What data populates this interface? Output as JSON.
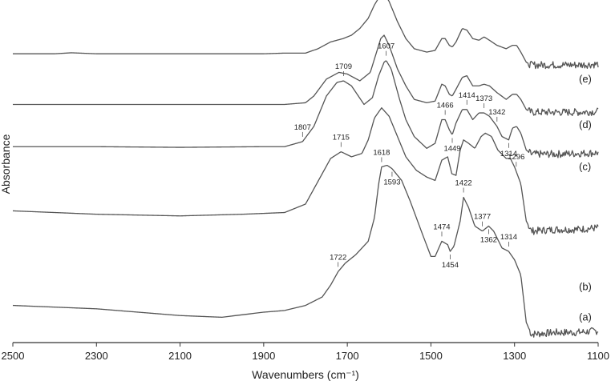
{
  "chart_data": {
    "type": "line",
    "title": "",
    "xlabel": "Wavenumbers (cm⁻¹)",
    "ylabel": "Absorbance",
    "xlim": [
      2500,
      1100
    ],
    "x_reversed": true,
    "x_ticks": [
      2500,
      2300,
      2100,
      1900,
      1700,
      1500,
      1300,
      1100
    ],
    "y_ticks_shown": false,
    "grid": false,
    "series": [
      {
        "name": "(a)",
        "baseline": 0.06,
        "points": [
          [
            2500,
            0.11
          ],
          [
            2300,
            0.1
          ],
          [
            2100,
            0.08
          ],
          [
            2000,
            0.075
          ],
          [
            1900,
            0.09
          ],
          [
            1850,
            0.095
          ],
          [
            1800,
            0.11
          ],
          [
            1760,
            0.135
          ],
          [
            1740,
            0.17
          ],
          [
            1722,
            0.21
          ],
          [
            1705,
            0.235
          ],
          [
            1680,
            0.26
          ],
          [
            1650,
            0.3
          ],
          [
            1635,
            0.37
          ],
          [
            1625,
            0.47
          ],
          [
            1618,
            0.52
          ],
          [
            1605,
            0.525
          ],
          [
            1593,
            0.515
          ],
          [
            1570,
            0.48
          ],
          [
            1550,
            0.42
          ],
          [
            1520,
            0.32
          ],
          [
            1500,
            0.255
          ],
          [
            1490,
            0.255
          ],
          [
            1474,
            0.3
          ],
          [
            1460,
            0.29
          ],
          [
            1454,
            0.27
          ],
          [
            1445,
            0.285
          ],
          [
            1430,
            0.36
          ],
          [
            1422,
            0.43
          ],
          [
            1410,
            0.4
          ],
          [
            1395,
            0.345
          ],
          [
            1377,
            0.33
          ],
          [
            1362,
            0.345
          ],
          [
            1350,
            0.33
          ],
          [
            1330,
            0.28
          ],
          [
            1314,
            0.27
          ],
          [
            1300,
            0.245
          ],
          [
            1285,
            0.2
          ],
          [
            1272,
            0.06
          ],
          [
            1260,
            0.025
          ],
          [
            1200,
            0.03
          ],
          [
            1150,
            0.03
          ],
          [
            1100,
            0.035
          ]
        ]
      },
      {
        "name": "(b)",
        "baseline": 0.35,
        "points": [
          [
            2500,
            0.39
          ],
          [
            2300,
            0.38
          ],
          [
            2100,
            0.375
          ],
          [
            1950,
            0.38
          ],
          [
            1850,
            0.385
          ],
          [
            1800,
            0.41
          ],
          [
            1760,
            0.5
          ],
          [
            1740,
            0.545
          ],
          [
            1715,
            0.565
          ],
          [
            1690,
            0.55
          ],
          [
            1665,
            0.56
          ],
          [
            1650,
            0.6
          ],
          [
            1635,
            0.665
          ],
          [
            1618,
            0.695
          ],
          [
            1600,
            0.67
          ],
          [
            1580,
            0.61
          ],
          [
            1560,
            0.55
          ],
          [
            1535,
            0.51
          ],
          [
            1510,
            0.49
          ],
          [
            1490,
            0.48
          ],
          [
            1474,
            0.54
          ],
          [
            1460,
            0.55
          ],
          [
            1450,
            0.5
          ],
          [
            1440,
            0.495
          ],
          [
            1430,
            0.57
          ],
          [
            1422,
            0.6
          ],
          [
            1410,
            0.59
          ],
          [
            1395,
            0.575
          ],
          [
            1380,
            0.61
          ],
          [
            1370,
            0.62
          ],
          [
            1355,
            0.61
          ],
          [
            1340,
            0.57
          ],
          [
            1320,
            0.545
          ],
          [
            1310,
            0.545
          ],
          [
            1300,
            0.52
          ],
          [
            1285,
            0.47
          ],
          [
            1272,
            0.36
          ],
          [
            1260,
            0.33
          ],
          [
            1200,
            0.335
          ],
          [
            1150,
            0.335
          ],
          [
            1100,
            0.34
          ]
        ]
      },
      {
        "name": "(c)",
        "baseline": 0.56,
        "points": [
          [
            2500,
            0.58
          ],
          [
            2300,
            0.58
          ],
          [
            2100,
            0.578
          ],
          [
            1900,
            0.58
          ],
          [
            1850,
            0.58
          ],
          [
            1807,
            0.595
          ],
          [
            1780,
            0.64
          ],
          [
            1750,
            0.73
          ],
          [
            1725,
            0.77
          ],
          [
            1709,
            0.775
          ],
          [
            1690,
            0.76
          ],
          [
            1660,
            0.705
          ],
          [
            1640,
            0.725
          ],
          [
            1625,
            0.79
          ],
          [
            1612,
            0.83
          ],
          [
            1607,
            0.835
          ],
          [
            1595,
            0.81
          ],
          [
            1575,
            0.72
          ],
          [
            1560,
            0.66
          ],
          [
            1540,
            0.61
          ],
          [
            1510,
            0.575
          ],
          [
            1490,
            0.59
          ],
          [
            1474,
            0.66
          ],
          [
            1466,
            0.66
          ],
          [
            1456,
            0.63
          ],
          [
            1449,
            0.615
          ],
          [
            1440,
            0.65
          ],
          [
            1425,
            0.69
          ],
          [
            1414,
            0.69
          ],
          [
            1400,
            0.66
          ],
          [
            1385,
            0.68
          ],
          [
            1373,
            0.68
          ],
          [
            1360,
            0.67
          ],
          [
            1342,
            0.64
          ],
          [
            1330,
            0.61
          ],
          [
            1314,
            0.6
          ],
          [
            1305,
            0.635
          ],
          [
            1295,
            0.64
          ],
          [
            1285,
            0.62
          ],
          [
            1272,
            0.57
          ],
          [
            1260,
            0.558
          ],
          [
            1200,
            0.558
          ],
          [
            1150,
            0.56
          ],
          [
            1100,
            0.562
          ]
        ]
      },
      {
        "name": "(d)",
        "baseline": 0.68,
        "points": [
          [
            2500,
            0.705
          ],
          [
            2300,
            0.705
          ],
          [
            2100,
            0.705
          ],
          [
            1900,
            0.705
          ],
          [
            1850,
            0.705
          ],
          [
            1800,
            0.71
          ],
          [
            1780,
            0.73
          ],
          [
            1750,
            0.78
          ],
          [
            1720,
            0.8
          ],
          [
            1700,
            0.795
          ],
          [
            1670,
            0.775
          ],
          [
            1645,
            0.8
          ],
          [
            1630,
            0.86
          ],
          [
            1620,
            0.9
          ],
          [
            1612,
            0.91
          ],
          [
            1600,
            0.88
          ],
          [
            1580,
            0.81
          ],
          [
            1560,
            0.76
          ],
          [
            1540,
            0.72
          ],
          [
            1510,
            0.71
          ],
          [
            1490,
            0.715
          ],
          [
            1474,
            0.765
          ],
          [
            1466,
            0.76
          ],
          [
            1456,
            0.735
          ],
          [
            1449,
            0.73
          ],
          [
            1440,
            0.75
          ],
          [
            1425,
            0.785
          ],
          [
            1414,
            0.79
          ],
          [
            1400,
            0.76
          ],
          [
            1385,
            0.76
          ],
          [
            1373,
            0.765
          ],
          [
            1360,
            0.76
          ],
          [
            1342,
            0.74
          ],
          [
            1320,
            0.72
          ],
          [
            1305,
            0.735
          ],
          [
            1295,
            0.735
          ],
          [
            1285,
            0.72
          ],
          [
            1272,
            0.69
          ],
          [
            1260,
            0.682
          ],
          [
            1200,
            0.682
          ],
          [
            1150,
            0.682
          ],
          [
            1100,
            0.684
          ]
        ]
      },
      {
        "name": "(e)",
        "baseline": 0.82,
        "points": [
          [
            2500,
            0.855
          ],
          [
            2400,
            0.855
          ],
          [
            2360,
            0.858
          ],
          [
            2300,
            0.855
          ],
          [
            2100,
            0.855
          ],
          [
            1900,
            0.855
          ],
          [
            1850,
            0.857
          ],
          [
            1800,
            0.857
          ],
          [
            1770,
            0.87
          ],
          [
            1740,
            0.89
          ],
          [
            1710,
            0.9
          ],
          [
            1690,
            0.91
          ],
          [
            1670,
            0.93
          ],
          [
            1650,
            0.96
          ],
          [
            1635,
            1.0
          ],
          [
            1620,
            1.03
          ],
          [
            1612,
            1.035
          ],
          [
            1600,
            1.01
          ],
          [
            1580,
            0.95
          ],
          [
            1560,
            0.9
          ],
          [
            1540,
            0.87
          ],
          [
            1510,
            0.86
          ],
          [
            1490,
            0.865
          ],
          [
            1474,
            0.9
          ],
          [
            1466,
            0.9
          ],
          [
            1456,
            0.88
          ],
          [
            1449,
            0.875
          ],
          [
            1440,
            0.89
          ],
          [
            1425,
            0.93
          ],
          [
            1414,
            0.925
          ],
          [
            1400,
            0.9
          ],
          [
            1385,
            0.895
          ],
          [
            1373,
            0.905
          ],
          [
            1360,
            0.895
          ],
          [
            1342,
            0.88
          ],
          [
            1320,
            0.87
          ],
          [
            1305,
            0.88
          ],
          [
            1295,
            0.88
          ],
          [
            1285,
            0.86
          ],
          [
            1272,
            0.83
          ],
          [
            1260,
            0.822
          ],
          [
            1200,
            0.822
          ],
          [
            1150,
            0.822
          ],
          [
            1100,
            0.824
          ]
        ]
      }
    ],
    "annotations": [
      {
        "series": "(a)",
        "x": 1722,
        "label": "1722",
        "pos": "above"
      },
      {
        "series": "(a)",
        "x": 1618,
        "label": "1618",
        "pos": "above"
      },
      {
        "series": "(a)",
        "x": 1593,
        "label": "1593",
        "pos": "below"
      },
      {
        "series": "(a)",
        "x": 1474,
        "label": "1474",
        "pos": "above"
      },
      {
        "series": "(a)",
        "x": 1454,
        "label": "1454",
        "pos": "below"
      },
      {
        "series": "(a)",
        "x": 1422,
        "label": "1422",
        "pos": "above"
      },
      {
        "series": "(a)",
        "x": 1377,
        "label": "1377",
        "pos": "above"
      },
      {
        "series": "(a)",
        "x": 1362,
        "label": "1362",
        "pos": "below"
      },
      {
        "series": "(a)",
        "x": 1314,
        "label": "1314",
        "pos": "above"
      },
      {
        "series": "(b)",
        "x": 1715,
        "label": "1715",
        "pos": "above"
      },
      {
        "series": "(b)",
        "x": 1296,
        "label": "1296",
        "pos": "above"
      },
      {
        "series": "(c)",
        "x": 1807,
        "label": "1807",
        "pos": "above"
      },
      {
        "series": "(c)",
        "x": 1709,
        "label": "1709",
        "pos": "above"
      },
      {
        "series": "(c)",
        "x": 1607,
        "label": "1607",
        "pos": "above"
      },
      {
        "series": "(c)",
        "x": 1466,
        "label": "1466",
        "pos": "above"
      },
      {
        "series": "(c)",
        "x": 1449,
        "label": "1449",
        "pos": "below"
      },
      {
        "series": "(c)",
        "x": 1414,
        "label": "1414",
        "pos": "above"
      },
      {
        "series": "(c)",
        "x": 1373,
        "label": "1373",
        "pos": "above"
      },
      {
        "series": "(c)",
        "x": 1342,
        "label": "1342",
        "pos": "above"
      },
      {
        "series": "(c)",
        "x": 1314,
        "label": "1314",
        "pos": "below"
      }
    ],
    "legend": "right-side labels"
  }
}
